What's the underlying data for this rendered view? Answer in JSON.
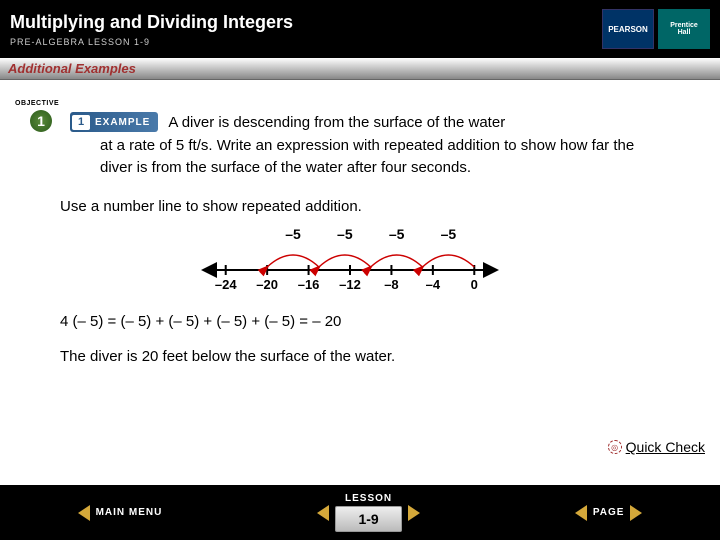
{
  "header": {
    "title": "Multiplying and Dividing Integers",
    "subtitle": "PRE-ALGEBRA LESSON 1-9",
    "pearson": "PEARSON",
    "prentice1": "Prentice",
    "prentice2": "Hall"
  },
  "section_label": "Additional Examples",
  "objective": {
    "label": "OBJECTIVE",
    "num": "1"
  },
  "example_badge": {
    "num": "1",
    "text": "EXAMPLE"
  },
  "problem": {
    "line1": "A diver is descending from the surface of the water",
    "rest": "at a rate of 5 ft/s. Write an expression with repeated addition to show how far the diver is from the surface of the water after four seconds."
  },
  "step": "Use a number line to show repeated addition.",
  "numline": {
    "ticks": [
      "–24",
      "–20",
      "–16",
      "–12",
      "–8",
      "–4",
      "0"
    ],
    "arcs": [
      "–5",
      "–5",
      "–5",
      "–5"
    ],
    "tick_color": "#000",
    "arc_color": "#c00",
    "label_fontsize": 14,
    "xmin": -26,
    "xmax": 2
  },
  "equation": "4 (– 5) = (– 5) + (– 5) + (– 5) + (– 5) = – 20",
  "answer": "The diver is 20 feet below the surface of the water.",
  "quickcheck": "Quick Check",
  "footer": {
    "main": "MAIN MENU",
    "lesson": "LESSON",
    "page": "PAGE",
    "pagenum": "1-9"
  },
  "colors": {
    "header_bg": "#000000",
    "accent": "#a03030",
    "objective": "#3a6a2a",
    "example": "#3a6a9a",
    "arrow": "#d4a83a"
  }
}
